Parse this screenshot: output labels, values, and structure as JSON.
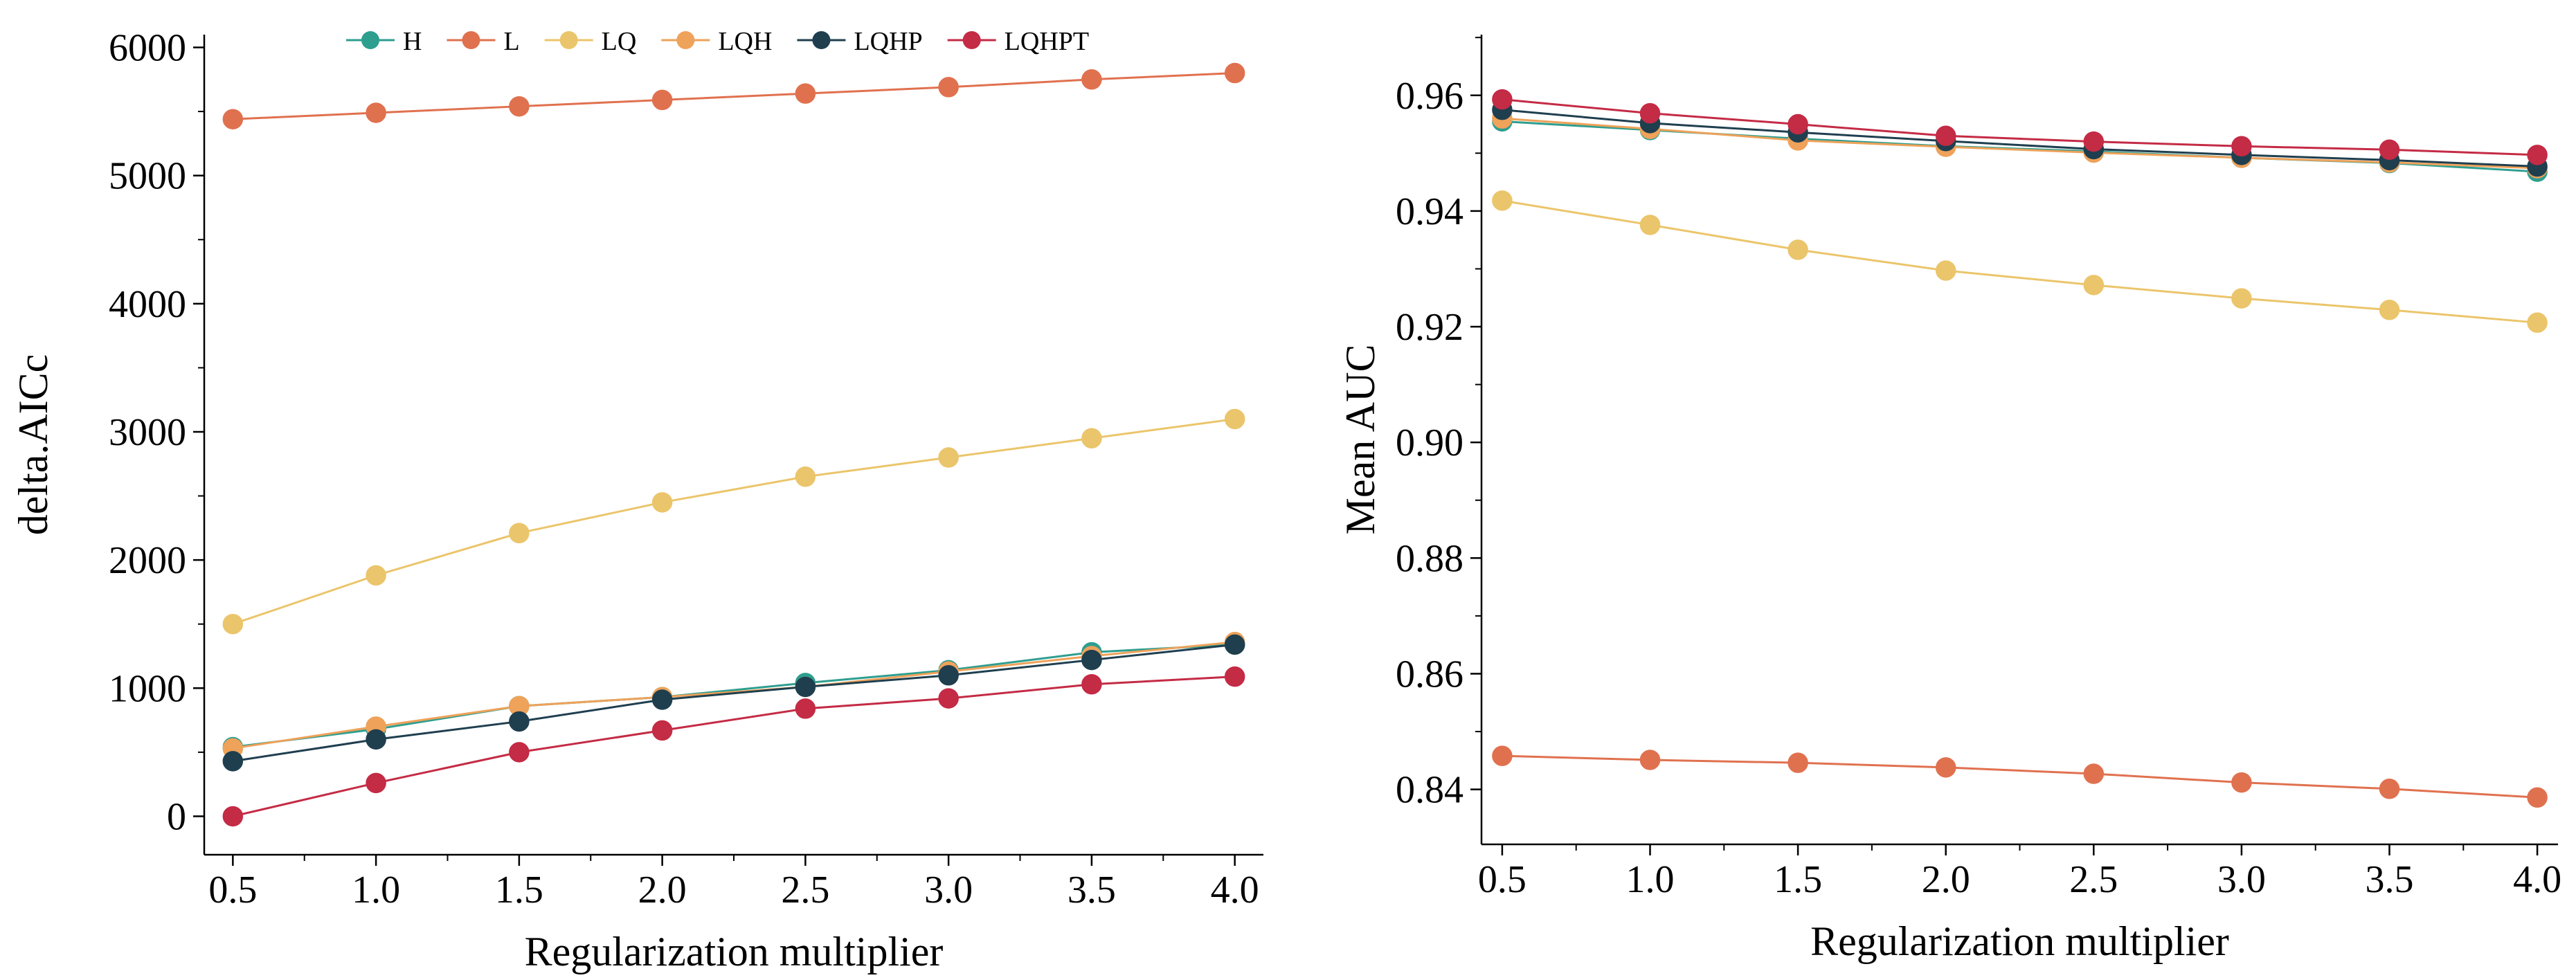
{
  "chart_data": [
    {
      "type": "line",
      "xlabel": "Regularization multiplier",
      "ylabel": "delta.AICc",
      "x": [
        0.5,
        1.0,
        1.5,
        2.0,
        2.5,
        3.0,
        3.5,
        4.0
      ],
      "xticks": [
        "0.5",
        "1.0",
        "1.5",
        "2.0",
        "2.5",
        "3.0",
        "3.5",
        "4.0"
      ],
      "xlim": [
        0.4,
        4.1
      ],
      "ylim": [
        -300,
        6100
      ],
      "yticks": [
        "0",
        "1000",
        "2000",
        "3000",
        "4000",
        "5000",
        "6000"
      ],
      "legend_position": "top",
      "grid": false,
      "series": [
        {
          "name": "H",
          "color": "#2e9e8f",
          "values": [
            540,
            680,
            860,
            930,
            1040,
            1140,
            1280,
            1340
          ]
        },
        {
          "name": "L",
          "color": "#e0714f",
          "values": [
            5440,
            5490,
            5540,
            5590,
            5640,
            5690,
            5750,
            5800
          ]
        },
        {
          "name": "LQ",
          "color": "#ebc56b",
          "values": [
            1500,
            1880,
            2210,
            2450,
            2650,
            2800,
            2950,
            3100
          ]
        },
        {
          "name": "LQH",
          "color": "#eea25a",
          "values": [
            530,
            700,
            860,
            930,
            1010,
            1130,
            1250,
            1360
          ]
        },
        {
          "name": "LQHP",
          "color": "#1f3f4f",
          "values": [
            430,
            600,
            740,
            910,
            1010,
            1100,
            1220,
            1340
          ]
        },
        {
          "name": "LQHPT",
          "color": "#c42b45",
          "values": [
            0,
            260,
            500,
            670,
            840,
            920,
            1030,
            1090
          ]
        }
      ]
    },
    {
      "type": "line",
      "xlabel": "Regularization multiplier",
      "ylabel": "Mean AUC",
      "x": [
        0.5,
        1.0,
        1.5,
        2.0,
        2.5,
        3.0,
        3.5,
        4.0
      ],
      "xticks": [
        "0.5",
        "1.0",
        "1.5",
        "2.0",
        "2.5",
        "3.0",
        "3.5",
        "4.0"
      ],
      "xlim": [
        0.43,
        4.07
      ],
      "ylim": [
        0.8305,
        0.9705
      ],
      "yticks": [
        "0.84",
        "0.86",
        "0.88",
        "0.90",
        "0.92",
        "0.94",
        "0.96"
      ],
      "grid": false,
      "series": [
        {
          "name": "H",
          "color": "#2e9e8f",
          "values": [
            0.9555,
            0.954,
            0.9525,
            0.9512,
            0.9503,
            0.9492,
            0.9483,
            0.9468
          ]
        },
        {
          "name": "L",
          "color": "#e0714f",
          "values": [
            0.8458,
            0.8451,
            0.8446,
            0.8438,
            0.8427,
            0.8412,
            0.8401,
            0.8386
          ]
        },
        {
          "name": "LQ",
          "color": "#ebc56b",
          "values": [
            0.9418,
            0.9376,
            0.9333,
            0.9297,
            0.9272,
            0.9249,
            0.9229,
            0.9207
          ]
        },
        {
          "name": "LQH",
          "color": "#eea25a",
          "values": [
            0.956,
            0.9542,
            0.9522,
            0.9511,
            0.9501,
            0.9492,
            0.9484,
            0.9474
          ]
        },
        {
          "name": "LQHP",
          "color": "#1f3f4f",
          "values": [
            0.9575,
            0.9552,
            0.9536,
            0.9521,
            0.9507,
            0.9497,
            0.9488,
            0.9477
          ]
        },
        {
          "name": "LQHPT",
          "color": "#c42b45",
          "values": [
            0.9593,
            0.9569,
            0.955,
            0.953,
            0.952,
            0.9512,
            0.9506,
            0.9497
          ]
        }
      ]
    }
  ]
}
